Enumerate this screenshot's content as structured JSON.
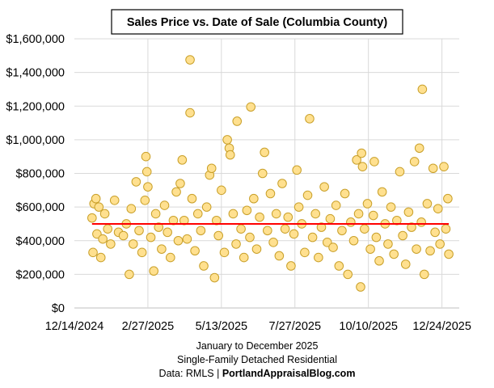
{
  "chart_data": {
    "type": "scatter",
    "title": "Sales Price vs. Date of Sale (Columbia County)",
    "xlabel_lines": [
      "January to December 2025",
      "Single-Family Detached Residential"
    ],
    "source_prefix": "Data: RMLS | ",
    "source_brand": "PortlandAppraisalBlog.com",
    "xlim": [
      "2024-12-14",
      "2026-01-09"
    ],
    "ylim": [
      0,
      1600000
    ],
    "grid": true,
    "x_ticks": [
      "12/14/2024",
      "2/27/2025",
      "5/13/2025",
      "7/27/2025",
      "10/10/2025",
      "12/24/2025"
    ],
    "x_tick_dates": [
      "2024-12-14",
      "2025-02-27",
      "2025-05-13",
      "2025-07-27",
      "2025-10-10",
      "2025-12-24"
    ],
    "y_ticks": [
      "$0",
      "$200,000",
      "$400,000",
      "$600,000",
      "$800,000",
      "$1,000,000",
      "$1,200,000",
      "$1,400,000",
      "$1,600,000"
    ],
    "y_tick_values": [
      0,
      200000,
      400000,
      600000,
      800000,
      1000000,
      1200000,
      1400000,
      1600000
    ],
    "colors": {
      "marker_fill": "#FFE08F",
      "marker_stroke": "#C9A02A",
      "trend": "#FF0000",
      "grid": "#D9D9D9"
    },
    "trend_line": {
      "from": "2025-01-01",
      "to": "2025-12-31",
      "value": 500000
    },
    "points": [
      [
        "2025-01-01",
        535000
      ],
      [
        "2025-01-02",
        330000
      ],
      [
        "2025-01-03",
        620000
      ],
      [
        "2025-01-05",
        650000
      ],
      [
        "2025-01-06",
        440000
      ],
      [
        "2025-01-08",
        600000
      ],
      [
        "2025-01-10",
        300000
      ],
      [
        "2025-01-12",
        410000
      ],
      [
        "2025-01-14",
        560000
      ],
      [
        "2025-01-17",
        470000
      ],
      [
        "2025-01-20",
        380000
      ],
      [
        "2025-01-24",
        640000
      ],
      [
        "2025-01-28",
        450000
      ],
      [
        "2025-02-02",
        430000
      ],
      [
        "2025-02-05",
        500000
      ],
      [
        "2025-02-08",
        200000
      ],
      [
        "2025-02-10",
        590000
      ],
      [
        "2025-02-12",
        380000
      ],
      [
        "2025-02-15",
        750000
      ],
      [
        "2025-02-18",
        460000
      ],
      [
        "2025-02-21",
        330000
      ],
      [
        "2025-02-24",
        640000
      ],
      [
        "2025-02-25",
        900000
      ],
      [
        "2025-02-26",
        810000
      ],
      [
        "2025-02-27",
        720000
      ],
      [
        "2025-03-02",
        420000
      ],
      [
        "2025-03-05",
        220000
      ],
      [
        "2025-03-07",
        560000
      ],
      [
        "2025-03-10",
        480000
      ],
      [
        "2025-03-13",
        350000
      ],
      [
        "2025-03-16",
        610000
      ],
      [
        "2025-03-19",
        450000
      ],
      [
        "2025-03-22",
        300000
      ],
      [
        "2025-03-25",
        520000
      ],
      [
        "2025-03-28",
        690000
      ],
      [
        "2025-03-30",
        400000
      ],
      [
        "2025-04-01",
        740000
      ],
      [
        "2025-04-03",
        880000
      ],
      [
        "2025-04-05",
        520000
      ],
      [
        "2025-04-08",
        410000
      ],
      [
        "2025-04-11",
        1475000
      ],
      [
        "2025-04-11",
        1160000
      ],
      [
        "2025-04-13",
        650000
      ],
      [
        "2025-04-16",
        340000
      ],
      [
        "2025-04-19",
        560000
      ],
      [
        "2025-04-22",
        460000
      ],
      [
        "2025-04-25",
        250000
      ],
      [
        "2025-04-28",
        600000
      ],
      [
        "2025-05-01",
        790000
      ],
      [
        "2025-05-03",
        830000
      ],
      [
        "2025-05-06",
        180000
      ],
      [
        "2025-05-08",
        520000
      ],
      [
        "2025-05-10",
        430000
      ],
      [
        "2025-05-13",
        700000
      ],
      [
        "2025-05-16",
        330000
      ],
      [
        "2025-05-19",
        1000000
      ],
      [
        "2025-05-21",
        950000
      ],
      [
        "2025-05-22",
        910000
      ],
      [
        "2025-05-25",
        560000
      ],
      [
        "2025-05-28",
        380000
      ],
      [
        "2025-05-29",
        1110000
      ],
      [
        "2025-06-02",
        470000
      ],
      [
        "2025-06-05",
        300000
      ],
      [
        "2025-06-08",
        580000
      ],
      [
        "2025-06-11",
        420000
      ],
      [
        "2025-06-12",
        1195000
      ],
      [
        "2025-06-15",
        650000
      ],
      [
        "2025-06-18",
        350000
      ],
      [
        "2025-06-21",
        540000
      ],
      [
        "2025-06-24",
        800000
      ],
      [
        "2025-06-26",
        925000
      ],
      [
        "2025-06-29",
        460000
      ],
      [
        "2025-07-02",
        680000
      ],
      [
        "2025-07-05",
        390000
      ],
      [
        "2025-07-08",
        560000
      ],
      [
        "2025-07-11",
        310000
      ],
      [
        "2025-07-14",
        740000
      ],
      [
        "2025-07-17",
        470000
      ],
      [
        "2025-07-20",
        540000
      ],
      [
        "2025-07-23",
        250000
      ],
      [
        "2025-07-26",
        440000
      ],
      [
        "2025-07-29",
        820000
      ],
      [
        "2025-07-31",
        600000
      ],
      [
        "2025-08-03",
        500000
      ],
      [
        "2025-08-06",
        330000
      ],
      [
        "2025-08-09",
        670000
      ],
      [
        "2025-08-11",
        1125000
      ],
      [
        "2025-08-14",
        420000
      ],
      [
        "2025-08-17",
        560000
      ],
      [
        "2025-08-20",
        300000
      ],
      [
        "2025-08-23",
        480000
      ],
      [
        "2025-08-26",
        720000
      ],
      [
        "2025-08-29",
        390000
      ],
      [
        "2025-09-01",
        530000
      ],
      [
        "2025-09-04",
        360000
      ],
      [
        "2025-09-07",
        610000
      ],
      [
        "2025-09-10",
        250000
      ],
      [
        "2025-09-13",
        460000
      ],
      [
        "2025-09-16",
        680000
      ],
      [
        "2025-09-19",
        200000
      ],
      [
        "2025-09-22",
        510000
      ],
      [
        "2025-09-25",
        400000
      ],
      [
        "2025-09-28",
        880000
      ],
      [
        "2025-09-30",
        560000
      ],
      [
        "2025-10-02",
        125000
      ],
      [
        "2025-10-03",
        920000
      ],
      [
        "2025-10-04",
        840000
      ],
      [
        "2025-10-06",
        470000
      ],
      [
        "2025-10-09",
        620000
      ],
      [
        "2025-10-12",
        350000
      ],
      [
        "2025-10-15",
        550000
      ],
      [
        "2025-10-16",
        870000
      ],
      [
        "2025-10-18",
        420000
      ],
      [
        "2025-10-21",
        280000
      ],
      [
        "2025-10-24",
        690000
      ],
      [
        "2025-10-27",
        500000
      ],
      [
        "2025-10-30",
        380000
      ],
      [
        "2025-11-02",
        600000
      ],
      [
        "2025-11-05",
        320000
      ],
      [
        "2025-11-08",
        520000
      ],
      [
        "2025-11-11",
        810000
      ],
      [
        "2025-11-14",
        430000
      ],
      [
        "2025-11-17",
        260000
      ],
      [
        "2025-11-20",
        570000
      ],
      [
        "2025-11-23",
        480000
      ],
      [
        "2025-11-26",
        870000
      ],
      [
        "2025-11-28",
        350000
      ],
      [
        "2025-12-01",
        950000
      ],
      [
        "2025-12-03",
        510000
      ],
      [
        "2025-12-04",
        1300000
      ],
      [
        "2025-12-06",
        200000
      ],
      [
        "2025-12-09",
        620000
      ],
      [
        "2025-12-12",
        340000
      ],
      [
        "2025-12-15",
        830000
      ],
      [
        "2025-12-17",
        450000
      ],
      [
        "2025-12-20",
        590000
      ],
      [
        "2025-12-22",
        380000
      ],
      [
        "2025-12-26",
        840000
      ],
      [
        "2025-12-28",
        470000
      ],
      [
        "2025-12-30",
        650000
      ],
      [
        "2025-12-31",
        320000
      ]
    ]
  }
}
